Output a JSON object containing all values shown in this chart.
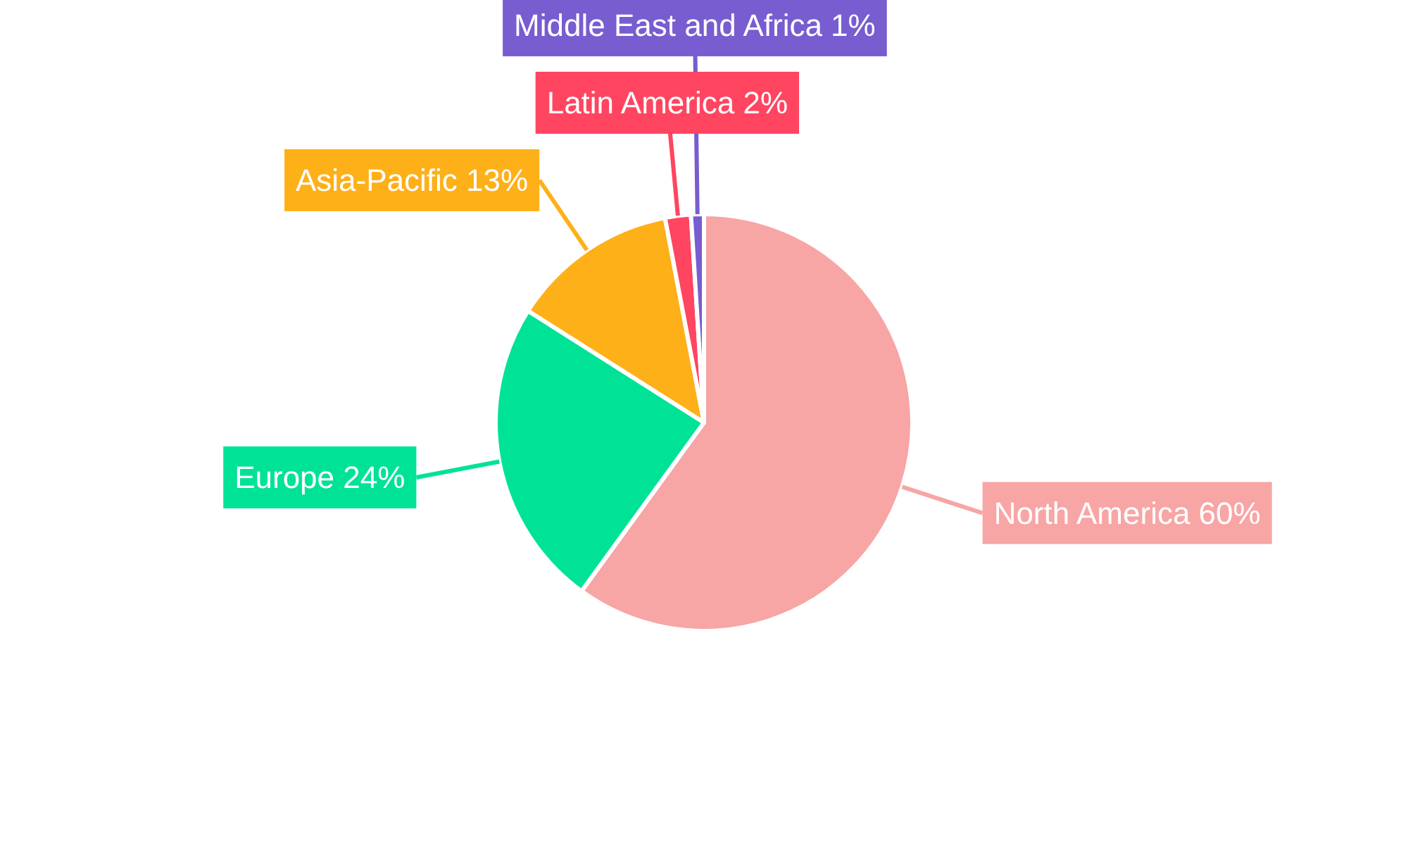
{
  "chart_data": {
    "type": "pie",
    "categories": [
      "North America",
      "Europe",
      "Asia-Pacific",
      "Latin America",
      "Middle East and Africa"
    ],
    "values": [
      60,
      24,
      13,
      2,
      1
    ],
    "value_labels": [
      "60%",
      "24%",
      "13%",
      "2%",
      "1%"
    ],
    "colors": [
      "#f8a5a5",
      "#00e396",
      "#feb019",
      "#ff4560",
      "#775dd0"
    ]
  }
}
